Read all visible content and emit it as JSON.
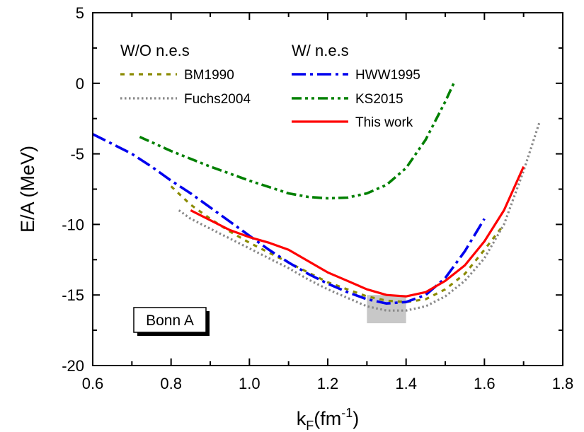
{
  "chart_data": {
    "type": "line",
    "title": "",
    "xlabel": "k",
    "xlabel_sub": "F",
    "xlabel_unit": "(fm",
    "xlabel_sup": "-1",
    "xlabel_close": ")",
    "ylabel": "E/A (MeV)",
    "xlim": [
      0.6,
      1.8
    ],
    "ylim": [
      -20,
      5
    ],
    "x_ticks": [
      0.6,
      0.8,
      1.0,
      1.2,
      1.4,
      1.6,
      1.8
    ],
    "x_tick_labels": [
      "0.6",
      "0.8",
      "1.0",
      "1.2",
      "1.4",
      "1.6",
      "1.8"
    ],
    "y_ticks": [
      -20,
      -15,
      -10,
      -5,
      0,
      5
    ],
    "y_tick_labels": [
      "-20",
      "-15",
      "-10",
      "-5",
      "0",
      "5"
    ],
    "grid": false,
    "legend_groups": [
      {
        "heading": "W/O n.e.s",
        "entries": [
          "BM1990",
          "Fuchs2004"
        ]
      },
      {
        "heading": "W/ n.e.s",
        "entries": [
          "HWW1995",
          "KS2015",
          "This work"
        ]
      }
    ],
    "series": [
      {
        "name": "BM1990",
        "color": "#8b8b00",
        "style": "dash",
        "x": [
          0.8,
          0.85,
          0.9,
          0.95,
          1.0,
          1.05,
          1.1,
          1.15,
          1.2,
          1.25,
          1.3,
          1.35,
          1.4,
          1.45,
          1.5,
          1.55,
          1.6,
          1.65
        ],
        "y": [
          -7.3,
          -8.6,
          -9.6,
          -10.5,
          -11.3,
          -12.0,
          -12.7,
          -13.4,
          -14.1,
          -14.6,
          -15.1,
          -15.4,
          -15.5,
          -15.3,
          -14.6,
          -13.5,
          -11.8,
          -10.0
        ]
      },
      {
        "name": "Fuchs2004",
        "color": "#888888",
        "style": "dot",
        "x": [
          0.82,
          0.85,
          0.9,
          0.95,
          1.0,
          1.05,
          1.1,
          1.15,
          1.2,
          1.25,
          1.3,
          1.35,
          1.4,
          1.45,
          1.5,
          1.55,
          1.6,
          1.65,
          1.7,
          1.74
        ],
        "y": [
          -9.0,
          -9.6,
          -10.3,
          -11.0,
          -11.7,
          -12.4,
          -13.1,
          -13.9,
          -14.6,
          -15.2,
          -15.8,
          -16.1,
          -16.1,
          -15.8,
          -15.1,
          -14.0,
          -12.4,
          -10.0,
          -6.2,
          -2.8
        ]
      },
      {
        "name": "HWW1995",
        "color": "#0000ee",
        "style": "dashdot",
        "x": [
          0.6,
          0.65,
          0.7,
          0.75,
          0.8,
          0.85,
          0.9,
          0.95,
          1.0,
          1.05,
          1.1,
          1.15,
          1.2,
          1.25,
          1.3,
          1.35,
          1.4,
          1.45,
          1.5,
          1.55,
          1.6
        ],
        "y": [
          -3.6,
          -4.3,
          -5.0,
          -5.9,
          -6.9,
          -7.8,
          -8.8,
          -9.8,
          -10.8,
          -11.8,
          -12.7,
          -13.5,
          -14.2,
          -14.8,
          -15.3,
          -15.6,
          -15.5,
          -15.0,
          -13.8,
          -11.9,
          -9.6
        ]
      },
      {
        "name": "KS2015",
        "color": "#008000",
        "style": "dashdotdot",
        "x": [
          0.72,
          0.8,
          0.9,
          1.0,
          1.1,
          1.15,
          1.2,
          1.25,
          1.3,
          1.35,
          1.4,
          1.45,
          1.5,
          1.525
        ],
        "y": [
          -3.8,
          -4.8,
          -5.9,
          -6.9,
          -7.8,
          -8.05,
          -8.15,
          -8.1,
          -7.8,
          -7.2,
          -6.0,
          -4.0,
          -1.3,
          0.2
        ]
      },
      {
        "name": "This work",
        "color": "#ff0000",
        "style": "solid",
        "x": [
          0.85,
          0.9,
          0.95,
          1.0,
          1.05,
          1.1,
          1.15,
          1.2,
          1.25,
          1.3,
          1.35,
          1.4,
          1.45,
          1.5,
          1.55,
          1.6,
          1.65,
          1.7
        ],
        "y": [
          -9.0,
          -9.7,
          -10.4,
          -10.9,
          -11.3,
          -11.8,
          -12.6,
          -13.4,
          -14.0,
          -14.6,
          -15.0,
          -15.1,
          -14.8,
          -14.0,
          -12.9,
          -11.2,
          -9.0,
          -5.9
        ]
      }
    ],
    "shaded_region": {
      "x": [
        1.3,
        1.4
      ],
      "y": [
        -17.0,
        -15.0
      ],
      "color": "#c8c8c8"
    },
    "annotation": {
      "text": "Bonn A"
    }
  }
}
